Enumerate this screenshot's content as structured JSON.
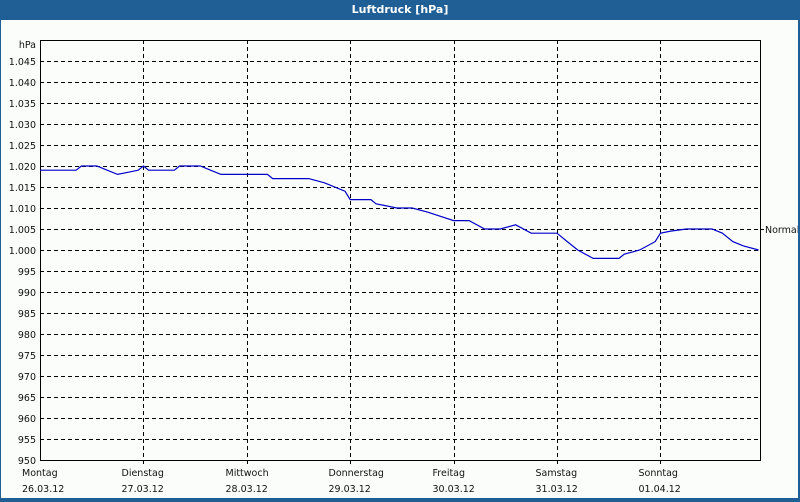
{
  "window": {
    "title": "Luftdruck [hPa]",
    "colors": {
      "title_bar": "#1f5f96",
      "background": "#fbfdfb",
      "line": "#0000c8",
      "grid": "#000000"
    }
  },
  "chart_data": {
    "type": "line",
    "title": "Luftdruck [hPa]",
    "ylabel": "hPa",
    "xlabel": "",
    "ylim": [
      950,
      1050
    ],
    "yticks": [
      950,
      955,
      960,
      965,
      970,
      975,
      980,
      985,
      990,
      995,
      1000,
      1005,
      1010,
      1015,
      1020,
      1025,
      1030,
      1035,
      1040,
      1045
    ],
    "ytick_labels": [
      "950",
      "955",
      "960",
      "965",
      "970",
      "975",
      "980",
      "985",
      "990",
      "995",
      "1.000",
      "1.005",
      "1.010",
      "1.015",
      "1.020",
      "1.025",
      "1.030",
      "1.035",
      "1.040",
      "1.045"
    ],
    "x_categories": [
      {
        "day": "Montag",
        "date": "26.03.12"
      },
      {
        "day": "Dienstag",
        "date": "27.03.12"
      },
      {
        "day": "Mittwoch",
        "date": "28.03.12"
      },
      {
        "day": "Donnerstag",
        "date": "29.03.12"
      },
      {
        "day": "Freitag",
        "date": "30.03.12"
      },
      {
        "day": "Samstag",
        "date": "31.03.12"
      },
      {
        "day": "Sonntag",
        "date": "01.04.12"
      }
    ],
    "grid": true,
    "reference_line": {
      "label": "Normal",
      "value": 1005
    },
    "series": [
      {
        "name": "Luftdruck",
        "x_days": [
          0,
          0.35,
          0.4,
          0.55,
          0.65,
          0.75,
          0.85,
          0.95,
          1.0,
          1.05,
          1.1,
          1.3,
          1.35,
          1.55,
          1.65,
          1.75,
          2.0,
          2.2,
          2.25,
          2.6,
          2.75,
          2.95,
          3.0,
          3.2,
          3.25,
          3.45,
          3.5,
          3.55,
          3.6,
          3.75,
          4.0,
          4.15,
          4.3,
          4.45,
          4.6,
          4.75,
          5.0,
          5.1,
          5.2,
          5.35,
          5.45,
          5.6,
          5.65,
          5.8,
          5.95,
          6.0,
          6.1,
          6.25,
          6.4,
          6.5,
          6.6,
          6.7,
          6.8,
          6.95
        ],
        "values": [
          1019,
          1019,
          1020,
          1020,
          1019,
          1018,
          1018.5,
          1019,
          1020,
          1019,
          1019,
          1019,
          1020,
          1020,
          1019,
          1018,
          1018,
          1018,
          1017,
          1017,
          1016,
          1014,
          1012,
          1012,
          1011,
          1010,
          1010,
          1010,
          1010,
          1009,
          1007,
          1007,
          1005,
          1005,
          1006,
          1004,
          1004,
          1002,
          1000,
          998,
          998,
          998,
          999,
          1000,
          1002,
          1004,
          1004.5,
          1005,
          1005,
          1005,
          1004,
          1002,
          1001,
          1000
        ]
      }
    ]
  }
}
